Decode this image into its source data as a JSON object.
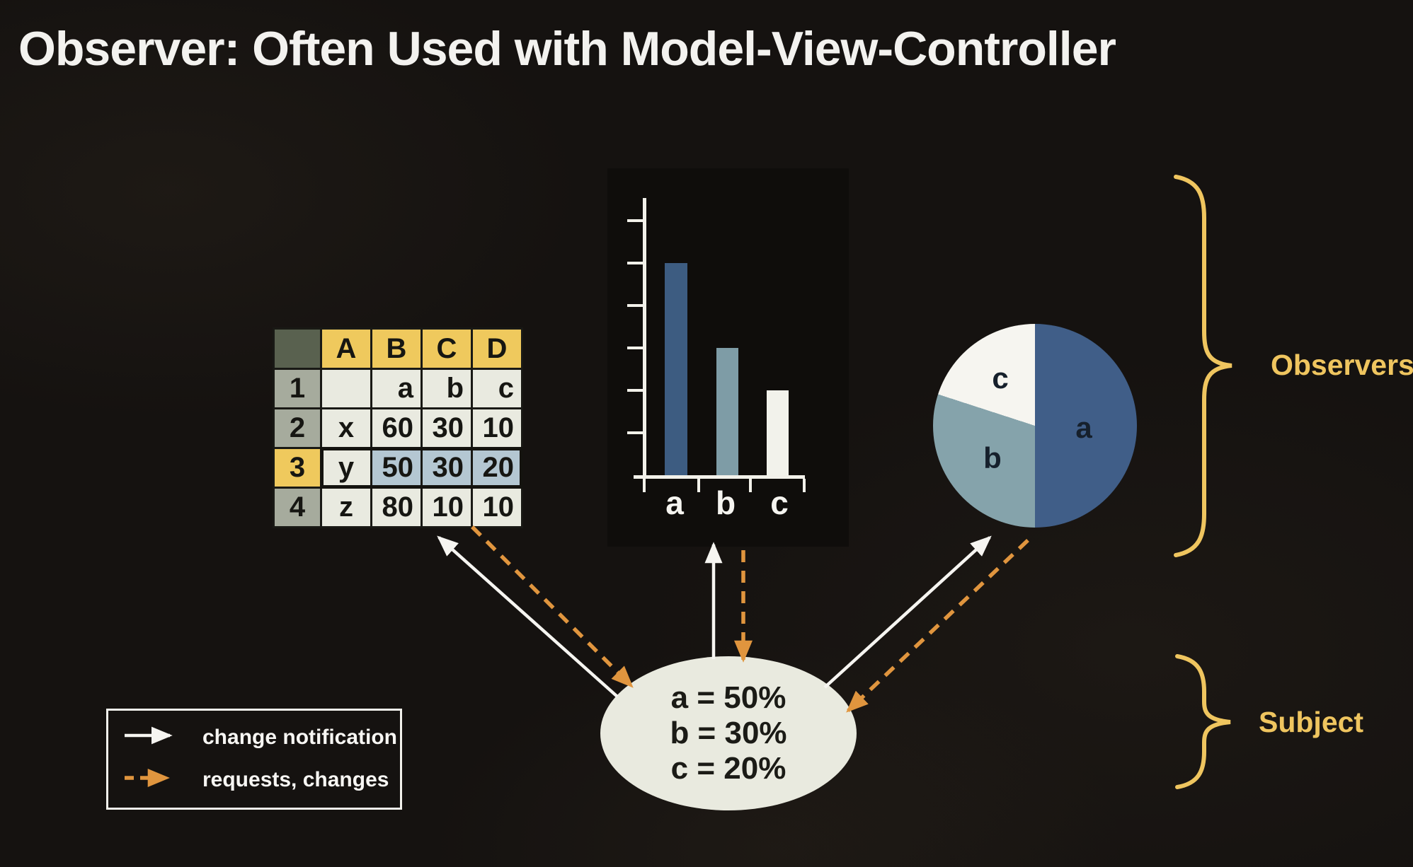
{
  "slide": {
    "title": "Observer: Often Used with Model-View-Controller"
  },
  "annotations": {
    "observers_label": "Observers",
    "subject_label": "Subject"
  },
  "subject_ellipse": {
    "line_a": "a = 50%",
    "line_b": "b = 30%",
    "line_c": "c = 20%"
  },
  "legend": {
    "items": [
      {
        "label": "change notification",
        "arrow": "solid-white-arrow"
      },
      {
        "label": "requests, changes",
        "arrow": "dashed-orange-arrow"
      }
    ]
  },
  "chart_data": [
    {
      "type": "bar",
      "categories": [
        "a",
        "b",
        "c"
      ],
      "values": [
        50,
        30,
        20
      ],
      "title": "",
      "xlabel": "",
      "ylabel": "",
      "ylim": [
        0,
        60
      ],
      "ytick_step": 10,
      "grid": false,
      "legend_position": "none",
      "bar_colors": [
        "#3D5C81",
        "#7E9CA6",
        "#F2F2EB"
      ],
      "axis_color": "#F2F1EA"
    },
    {
      "type": "pie",
      "labels": [
        "a",
        "b",
        "c"
      ],
      "values": [
        50,
        30,
        20
      ],
      "colors": [
        "#405E88",
        "#85A3AB",
        "#F6F5F0"
      ],
      "start_angle": "12 o'clock",
      "direction": "clockwise"
    },
    {
      "type": "table",
      "col_headers": [
        "A",
        "B",
        "C",
        "D"
      ],
      "row_headers": [
        "1",
        "2",
        "3",
        "4"
      ],
      "cells": [
        [
          "",
          "a",
          "b",
          "c"
        ],
        [
          "x",
          "60",
          "30",
          "10"
        ],
        [
          "y",
          "50",
          "30",
          "20"
        ],
        [
          "z",
          "80",
          "10",
          "10"
        ]
      ],
      "selected_row": "3",
      "highlighted_cells": [
        "B3",
        "C3",
        "D3"
      ]
    }
  ],
  "colors": {
    "background": "#151210",
    "title_text": "#F3F2EF",
    "gold_accent": "#EFC55F",
    "orange_arrow": "#E0953E",
    "white_arrow": "#F6F5F1",
    "table_header_yellow": "#EFC95D",
    "table_corner_gray": "#59614F",
    "table_rowhead_gray": "#A6AB9D",
    "table_cell_bg": "#E9EAE0",
    "table_highlight_blue": "#B4C7D2",
    "ellipse_fill": "#E9EADF"
  }
}
